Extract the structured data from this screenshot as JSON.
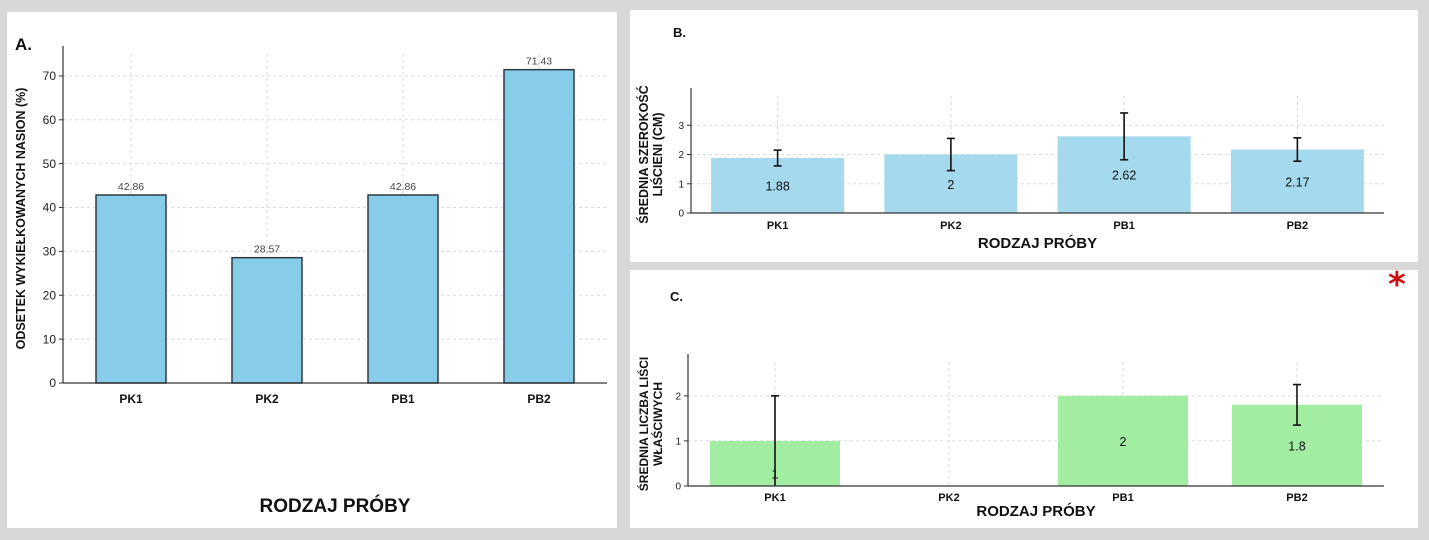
{
  "panels": {
    "a": {
      "letter": "A."
    },
    "b": {
      "letter": "B."
    },
    "c": {
      "letter": "C."
    }
  },
  "marker": {
    "asterisk": "*"
  },
  "colors": {
    "bar_blue": "#87cde9",
    "bar_blue_light": "#a5d9ee",
    "bar_green": "#a3eda3",
    "bar_edge": "#2f3a45",
    "grid": "#d9d9d9",
    "asterisk": "#cc1111"
  },
  "chart_data": [
    {
      "id": "a",
      "type": "bar",
      "categories": [
        "PK1",
        "PK2",
        "PB1",
        "PB2"
      ],
      "values": [
        42.86,
        28.57,
        42.86,
        71.43
      ],
      "value_labels": [
        "42.86",
        "28.57",
        "42.86",
        "71.43"
      ],
      "xlabel": "RODZAJ PRÓBY",
      "ylabel": "ODSETEK WYKIEŁKOWANYCH NASION (%)",
      "ylim": [
        0,
        75
      ],
      "yticks": [
        0,
        10,
        20,
        30,
        40,
        50,
        60,
        70
      ],
      "grid": true
    },
    {
      "id": "b",
      "type": "bar",
      "categories": [
        "PK1",
        "PK2",
        "PB1",
        "PB2"
      ],
      "values": [
        1.88,
        2,
        2.62,
        2.17
      ],
      "value_labels": [
        "1.88",
        "2",
        "2.62",
        "2.17"
      ],
      "error": [
        0.27,
        0.55,
        0.8,
        0.4
      ],
      "xlabel": "RODZAJ PRÓBY",
      "ylabel_lines": [
        "ŚREDNIA SZEROKOŚĆ",
        "LIŚCIENI (CM)"
      ],
      "ylim": [
        0,
        4
      ],
      "yticks": [
        0,
        1,
        2,
        3
      ],
      "grid": true
    },
    {
      "id": "c",
      "type": "bar",
      "categories": [
        "PK1",
        "PK2",
        "PB1",
        "PB2"
      ],
      "values": [
        1,
        0,
        2,
        1.8
      ],
      "value_labels": [
        "1",
        "",
        "2",
        "1.8"
      ],
      "error": [
        1,
        null,
        null,
        0.45
      ],
      "xlabel": "RODZAJ PRÓBY",
      "ylabel_lines": [
        "ŚREDNIA LICZBA LIŚCI",
        "WŁAŚCIWYCH"
      ],
      "ylim": [
        0,
        2.75
      ],
      "yticks": [
        0,
        1,
        2
      ],
      "grid": true
    }
  ]
}
